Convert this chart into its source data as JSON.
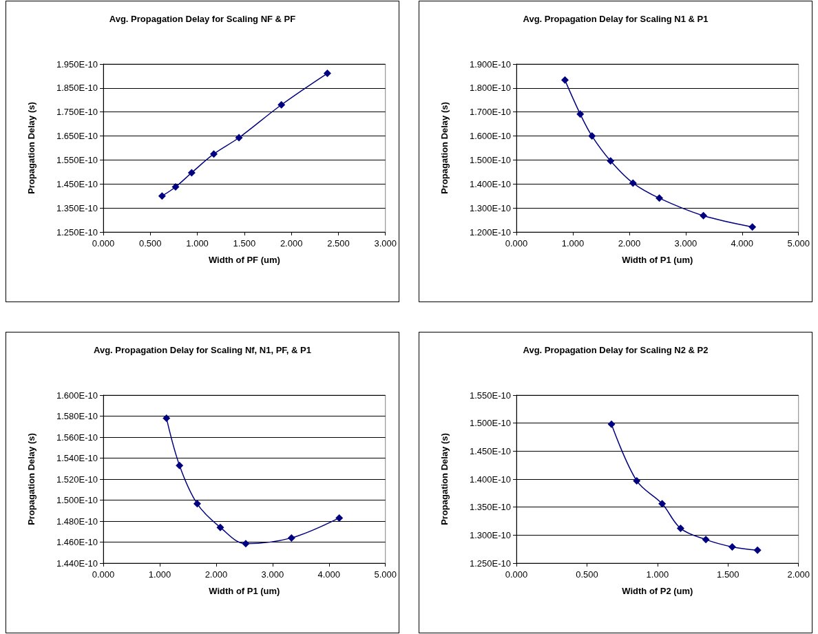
{
  "chart_data": [
    {
      "type": "line",
      "title": "Avg. Propagation Delay for Scaling NF & PF",
      "xlabel": "Width of PF (um)",
      "ylabel": "Propagation Delay (s)",
      "marker": "diamond",
      "grid": "y",
      "xlim": [
        0,
        3
      ],
      "xticks": [
        {
          "value": 0,
          "label": "0.000"
        },
        {
          "value": 0.5,
          "label": "0.500"
        },
        {
          "value": 1,
          "label": "1.000"
        },
        {
          "value": 1.5,
          "label": "1.500"
        },
        {
          "value": 2,
          "label": "2.000"
        },
        {
          "value": 2.5,
          "label": "2.500"
        },
        {
          "value": 3,
          "label": "3.000"
        }
      ],
      "ylim": [
        1.25e-10,
        1.95e-10
      ],
      "yticks": [
        {
          "value": 1.25e-10,
          "label": "1.250E-10"
        },
        {
          "value": 1.35e-10,
          "label": "1.350E-10"
        },
        {
          "value": 1.45e-10,
          "label": "1.450E-10"
        },
        {
          "value": 1.55e-10,
          "label": "1.550E-10"
        },
        {
          "value": 1.65e-10,
          "label": "1.650E-10"
        },
        {
          "value": 1.75e-10,
          "label": "1.750E-10"
        },
        {
          "value": 1.85e-10,
          "label": "1.850E-10"
        },
        {
          "value": 1.95e-10,
          "label": "1.950E-10"
        }
      ],
      "series": [
        {
          "color": "#000080",
          "x": [
            0.625,
            0.769,
            0.94,
            1.175,
            1.443,
            1.894,
            2.383
          ],
          "values": [
            1.4e-10,
            1.438e-10,
            1.497e-10,
            1.575e-10,
            1.643e-10,
            1.78e-10,
            1.911e-10
          ]
        }
      ]
    },
    {
      "type": "line",
      "title": "Avg. Propagation Delay for Scaling N1 & P1",
      "xlabel": "Width of P1 (um)",
      "ylabel": "Propagation Delay (s)",
      "marker": "diamond",
      "grid": "y",
      "xlim": [
        0,
        5
      ],
      "xticks": [
        {
          "value": 0,
          "label": "0.000"
        },
        {
          "value": 1,
          "label": "1.000"
        },
        {
          "value": 2,
          "label": "2.000"
        },
        {
          "value": 3,
          "label": "3.000"
        },
        {
          "value": 4,
          "label": "4.000"
        },
        {
          "value": 5,
          "label": "5.000"
        }
      ],
      "ylim": [
        1.2e-10,
        1.9e-10
      ],
      "yticks": [
        {
          "value": 1.2e-10,
          "label": "1.200E-10"
        },
        {
          "value": 1.3e-10,
          "label": "1.300E-10"
        },
        {
          "value": 1.4e-10,
          "label": "1.400E-10"
        },
        {
          "value": 1.5e-10,
          "label": "1.500E-10"
        },
        {
          "value": 1.6e-10,
          "label": "1.600E-10"
        },
        {
          "value": 1.7e-10,
          "label": "1.700E-10"
        },
        {
          "value": 1.8e-10,
          "label": "1.800E-10"
        },
        {
          "value": 1.9e-10,
          "label": "1.900E-10"
        }
      ],
      "series": [
        {
          "color": "#000080",
          "x": [
            0.86,
            1.132,
            1.339,
            1.669,
            2.066,
            2.533,
            3.314,
            4.182
          ],
          "values": [
            1.833e-10,
            1.691e-10,
            1.6e-10,
            1.496e-10,
            1.404e-10,
            1.341e-10,
            1.268e-10,
            1.221e-10
          ]
        }
      ]
    },
    {
      "type": "line",
      "title": "Avg. Propagation Delay for Scaling Nf, N1, PF, & P1",
      "xlabel": "Width of P1 (um)",
      "ylabel": "Propagation Delay (s)",
      "marker": "diamond",
      "grid": "y",
      "xlim": [
        0,
        5
      ],
      "xticks": [
        {
          "value": 0,
          "label": "0.000"
        },
        {
          "value": 1,
          "label": "1.000"
        },
        {
          "value": 2,
          "label": "2.000"
        },
        {
          "value": 3,
          "label": "3.000"
        },
        {
          "value": 4,
          "label": "4.000"
        },
        {
          "value": 5,
          "label": "5.000"
        }
      ],
      "ylim": [
        1.44e-10,
        1.6e-10
      ],
      "yticks": [
        {
          "value": 1.44e-10,
          "label": "1.440E-10"
        },
        {
          "value": 1.46e-10,
          "label": "1.460E-10"
        },
        {
          "value": 1.48e-10,
          "label": "1.480E-10"
        },
        {
          "value": 1.5e-10,
          "label": "1.500E-10"
        },
        {
          "value": 1.52e-10,
          "label": "1.520E-10"
        },
        {
          "value": 1.54e-10,
          "label": "1.540E-10"
        },
        {
          "value": 1.56e-10,
          "label": "1.560E-10"
        },
        {
          "value": 1.58e-10,
          "label": "1.580E-10"
        },
        {
          "value": 1.6e-10,
          "label": "1.600E-10"
        }
      ],
      "series": [
        {
          "color": "#000080",
          "x": [
            1.12,
            1.351,
            1.665,
            2.074,
            2.525,
            3.335,
            4.182
          ],
          "values": [
            1.578e-10,
            1.533e-10,
            1.4965e-10,
            1.474e-10,
            1.4585e-10,
            1.464e-10,
            1.483e-10
          ]
        }
      ]
    },
    {
      "type": "line",
      "title": "Avg. Propagation Delay for Scaling N2 & P2",
      "xlabel": "Width of P2 (um)",
      "ylabel": "Propagation Delay (s)",
      "marker": "diamond",
      "grid": "y",
      "xlim": [
        0,
        2
      ],
      "xticks": [
        {
          "value": 0,
          "label": "0.000"
        },
        {
          "value": 0.5,
          "label": "0.500"
        },
        {
          "value": 1,
          "label": "1.000"
        },
        {
          "value": 1.5,
          "label": "1.500"
        },
        {
          "value": 2,
          "label": "2.000"
        }
      ],
      "ylim": [
        1.25e-10,
        1.55e-10
      ],
      "yticks": [
        {
          "value": 1.25e-10,
          "label": "1.250E-10"
        },
        {
          "value": 1.3e-10,
          "label": "1.300E-10"
        },
        {
          "value": 1.35e-10,
          "label": "1.350E-10"
        },
        {
          "value": 1.4e-10,
          "label": "1.400E-10"
        },
        {
          "value": 1.45e-10,
          "label": "1.450E-10"
        },
        {
          "value": 1.5e-10,
          "label": "1.500E-10"
        },
        {
          "value": 1.55e-10,
          "label": "1.550E-10"
        }
      ],
      "series": [
        {
          "color": "#000080",
          "x": [
            0.674,
            0.853,
            1.033,
            1.164,
            1.343,
            1.53,
            1.709
          ],
          "values": [
            1.498e-10,
            1.397e-10,
            1.356e-10,
            1.312e-10,
            1.292e-10,
            1.279e-10,
            1.273e-10
          ]
        }
      ]
    }
  ]
}
